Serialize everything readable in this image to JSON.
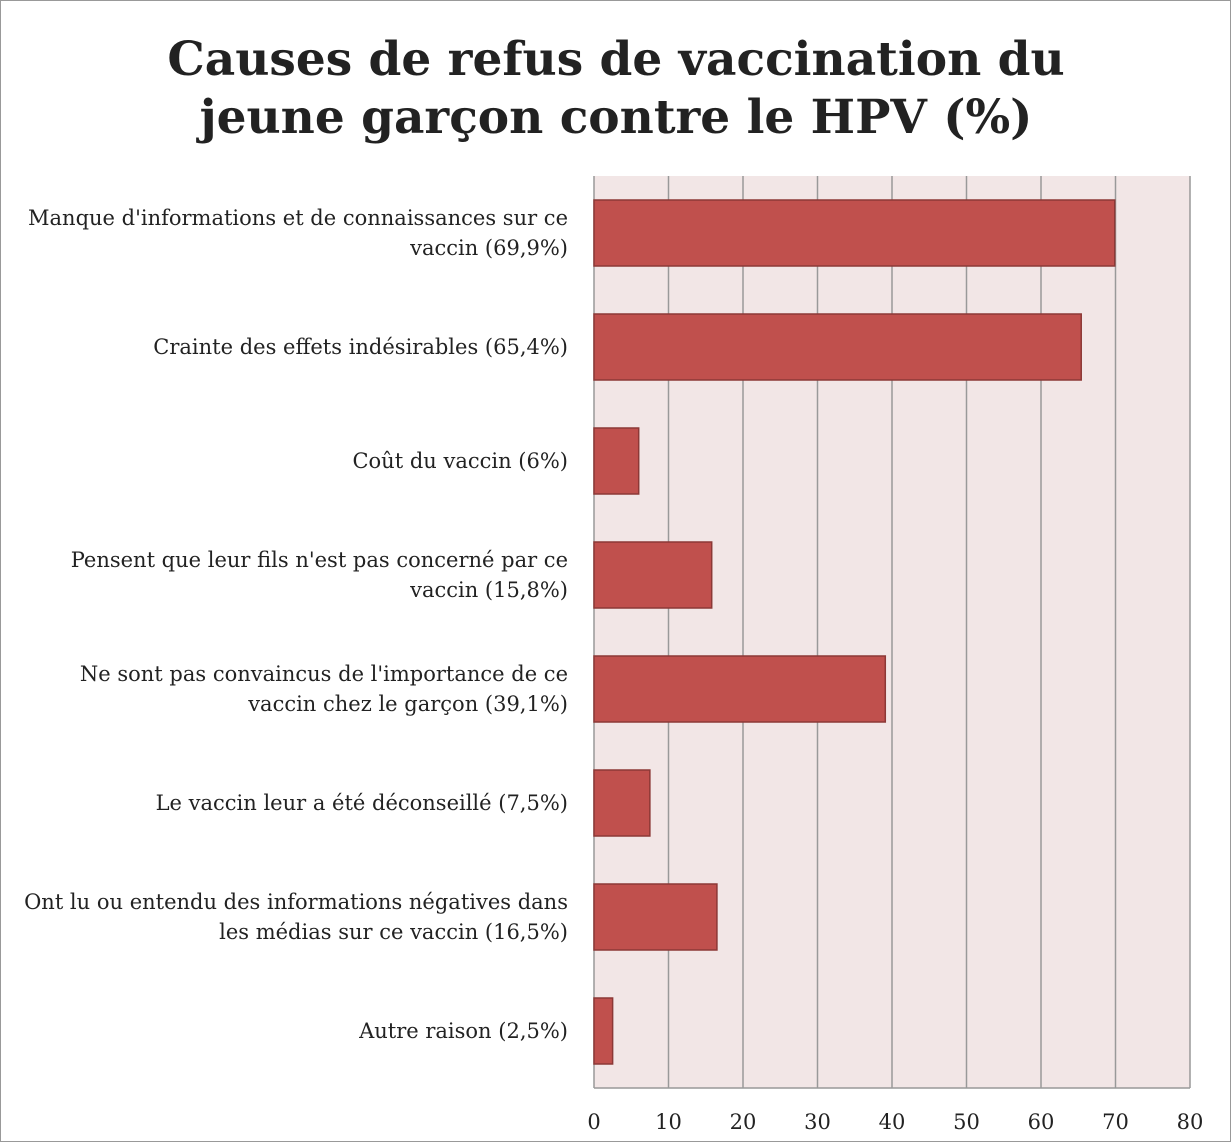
{
  "chart_data": {
    "type": "barh",
    "title": "Causes de refus de vaccination du jeune garçon contre le HPV (%)",
    "categories": [
      "Manque d'informations et de connaissances sur ce vaccin (69,9%)",
      "Crainte des effets indésirables (65,4%)",
      "Coût du vaccin (6%)",
      "Pensent que leur fils n'est pas concerné par ce vaccin (15,8%)",
      "Ne sont pas convaincus de l'importance de ce vaccin chez le garçon (39,1%)",
      "Le vaccin leur a été déconseillé (7,5%)",
      "Ont lu ou entendu des informations négatives dans les médias sur ce vaccin (16,5%)",
      "Autre raison (2,5%)"
    ],
    "values": [
      69.9,
      65.4,
      6,
      15.8,
      39.1,
      7.5,
      16.5,
      2.5
    ],
    "color": "#c0504d",
    "xlim": [
      0,
      80
    ],
    "xticks": [
      0,
      10,
      20,
      30,
      40,
      50,
      60,
      70,
      80
    ],
    "grid": true
  }
}
